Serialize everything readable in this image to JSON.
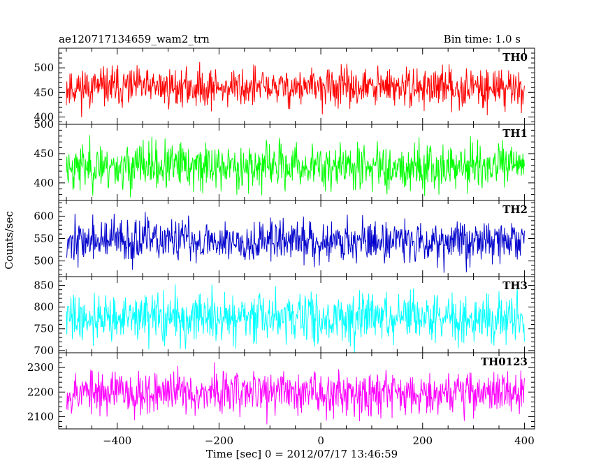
{
  "header": {
    "title": "ae120717134659_wam2_trn",
    "bin_time": "Bin time: 1.0 s"
  },
  "chart_data": {
    "type": "line",
    "xlabel": "Time [sec] 0 = 2012/07/17 13:46:59",
    "ylabel": "Counts/sec",
    "xlim": [
      -515,
      420
    ],
    "x_range": [
      -500,
      400
    ],
    "xticks": [
      -400,
      -200,
      0,
      200,
      400
    ],
    "grid": false,
    "panels": [
      {
        "name": "TH0",
        "color": "#ff0000",
        "ylim": [
          385,
          540
        ],
        "yticks": [
          400,
          450,
          500
        ],
        "mean": 460,
        "sigma": 20,
        "seed": 11
      },
      {
        "name": "TH1",
        "color": "#00ff00",
        "ylim": [
          370,
          500
        ],
        "yticks": [
          400,
          450,
          500
        ],
        "mean": 428,
        "sigma": 20,
        "seed": 23
      },
      {
        "name": "TH2",
        "color": "#0000cc",
        "ylim": [
          465,
          635
        ],
        "yticks": [
          500,
          550,
          600
        ],
        "mean": 545,
        "sigma": 24,
        "seed": 37
      },
      {
        "name": "TH3",
        "color": "#00ffff",
        "ylim": [
          695,
          870
        ],
        "yticks": [
          700,
          750,
          800,
          850
        ],
        "mean": 775,
        "sigma": 28,
        "seed": 41
      },
      {
        "name": "TH0123",
        "color": "#ff00ff",
        "ylim": [
          2050,
          2360
        ],
        "yticks": [
          2100,
          2200,
          2300
        ],
        "mean": 2200,
        "sigma": 45,
        "seed": 53
      }
    ]
  }
}
